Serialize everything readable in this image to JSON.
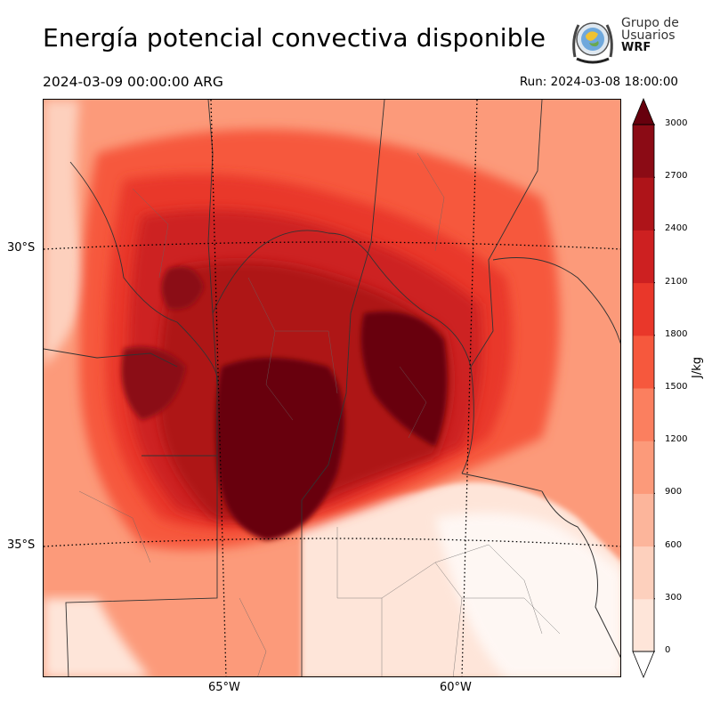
{
  "header": {
    "title": "Energía potencial convectiva disponible",
    "valid_time": "2024-03-09 00:00:00 ARG",
    "run": "Run: 2024-03-08 18:00:00"
  },
  "logo": {
    "line1": "Grupo de",
    "line2": "Usuarios",
    "line3": "WRF"
  },
  "map": {
    "variable": "CAPE",
    "lat_labels": [
      "30°S",
      "35°S"
    ],
    "lon_labels": [
      "65°W",
      "60°W"
    ]
  },
  "colorbar": {
    "unit": "J/kg",
    "levels": [
      "0",
      "300",
      "600",
      "900",
      "1200",
      "1500",
      "1800",
      "2100",
      "2400",
      "2700",
      "3000"
    ],
    "colors": [
      "#fee5d9",
      "#fdd0bd",
      "#fcb59b",
      "#fc9a7a",
      "#fb7f5f",
      "#f6583d",
      "#e9372a",
      "#cd2021",
      "#ae1419",
      "#8b0b15",
      "#67000d"
    ],
    "extend": "both"
  }
}
